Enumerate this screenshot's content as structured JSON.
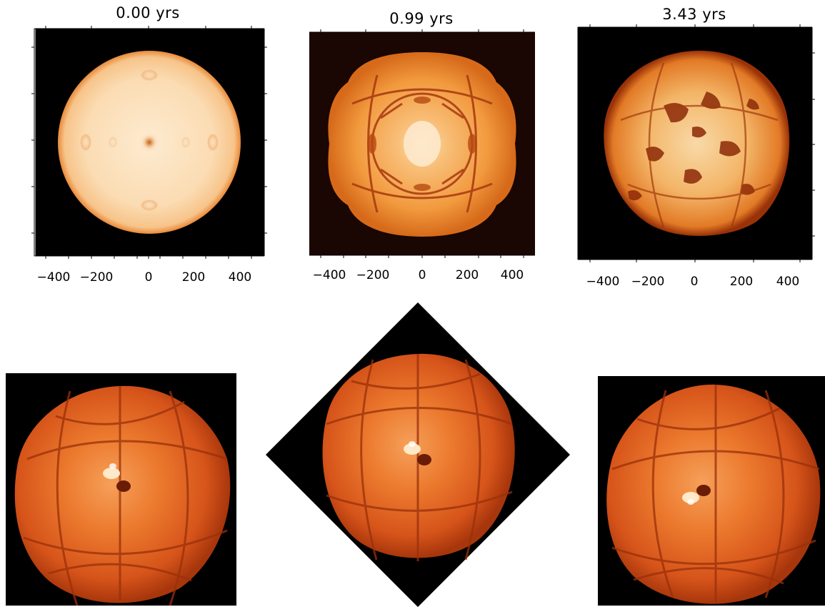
{
  "top_panels": [
    {
      "title": "0.00 yrs",
      "x_ticks": [
        "−400",
        "−200",
        "0",
        "200",
        "400"
      ]
    },
    {
      "title": "0.99 yrs",
      "x_ticks": [
        "−400",
        "−200",
        "0",
        "200",
        "400"
      ]
    },
    {
      "title": "3.43 yrs",
      "x_ticks": [
        "−400",
        "−200",
        "0",
        "200",
        "400"
      ]
    }
  ],
  "colors": {
    "background": "#000000",
    "star_pale": "#fbe4c2",
    "star_orange": "#f3a04a",
    "star_deep": "#d65a14",
    "star_dark": "#5a1a06"
  }
}
